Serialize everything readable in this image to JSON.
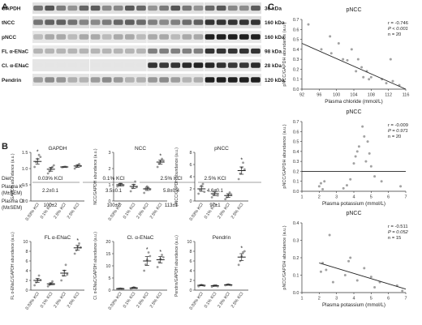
{
  "panel_letters": {
    "a": "A",
    "b": "B",
    "c": "C"
  },
  "blots": [
    {
      "label": "GAPDH",
      "size": "36 kDa",
      "profile": "gapdh",
      "bg": "#e1e1e1"
    },
    {
      "label": "tNCC",
      "size": "160 kDa",
      "profile": "tncc",
      "bg": "#dcdcdc"
    },
    {
      "label": "pNCC",
      "size": "160 kDa",
      "profile": "pncc",
      "bg": "#e7e7e7"
    },
    {
      "label": "FL α-ENaC",
      "size": "98 kDa",
      "profile": "flenac",
      "bg": "#ebebeb"
    },
    {
      "label": "Cl. α-ENaC",
      "size": "28 kDa",
      "profile": "clenac",
      "bg": "#e6e6e6"
    },
    {
      "label": "Pendrin",
      "size": "120 kDa",
      "profile": "pendrin",
      "bg": "#e5e5e5"
    }
  ],
  "diet": {
    "label": "Diet",
    "groups": [
      "0.03% KCl",
      "0.1% KCl",
      "2.5% KCl",
      "2.5% KCl"
    ],
    "plasma_k_label1": "Plasma K⁺",
    "plasma_k_label2": "(M±SEM)",
    "plasma_k": [
      "2.2±0.1",
      "3.5±0.1",
      "5.8±0.4",
      "4.6±0.1"
    ],
    "plasma_cl_label1": "Plasma Cl⁻",
    "plasma_cl_label2": "(M±SEM)",
    "plasma_cl": [
      "100±2",
      "100±2",
      "113±1",
      "97±1"
    ]
  },
  "chart_data": [
    {
      "type": "scatter",
      "title": "GAPDH",
      "ylabel": "GAPDH abundance (a.u.)",
      "categories": [
        "0.03% KCl",
        "0.1% KCl",
        "2.5% KCl",
        "2.5% KCl"
      ],
      "ylim": [
        0,
        1.5
      ],
      "yticks": [
        "0.0",
        "0.5",
        "1.0",
        "1.5"
      ],
      "means": [
        1.22,
        0.98,
        1.05,
        1.08
      ],
      "sem": [
        0.08,
        0.06,
        0.01,
        0.04
      ],
      "points": [
        [
          1.05,
          1.2,
          1.3,
          1.42,
          1.36
        ],
        [
          0.85,
          0.92,
          1.0,
          1.05,
          1.1
        ],
        [
          1.04,
          1.05,
          1.06,
          1.05
        ],
        [
          1.0,
          1.05,
          1.1,
          1.14,
          1.08
        ]
      ],
      "significance": [
        "*",
        "",
        "",
        ""
      ]
    },
    {
      "type": "scatter",
      "title": "NCC",
      "ylabel": "NCC/GAPDH abundance (a.u.)",
      "categories": [
        "0.03% KCl",
        "0.1% KCl",
        "2.5% KCl",
        "2.5% KCl"
      ],
      "ylim": [
        0,
        3
      ],
      "yticks": [
        "0",
        "1",
        "2",
        "3"
      ],
      "means": [
        1.0,
        0.9,
        0.75,
        2.4
      ],
      "sem": [
        0.08,
        0.12,
        0.1,
        0.12
      ],
      "points": [
        [
          0.9,
          1.0,
          1.1,
          1.05,
          0.95
        ],
        [
          0.6,
          0.8,
          1.0,
          1.2,
          0.85
        ],
        [
          0.5,
          0.75,
          0.9,
          0.8,
          0.7
        ],
        [
          2.1,
          2.3,
          2.45,
          2.6,
          2.5
        ]
      ],
      "significance": [
        "",
        "",
        "",
        "*"
      ]
    },
    {
      "type": "scatter",
      "title": "pNCC",
      "ylabel": "pNCC/GAPDH abundance (a.u.)",
      "categories": [
        "0.03% KCl",
        "0.1% KCl",
        "2.5% KCl",
        "2.5% KCl"
      ],
      "ylim": [
        0,
        8
      ],
      "yticks": [
        "0",
        "2",
        "4",
        "6",
        "8"
      ],
      "means": [
        2.0,
        1.2,
        0.9,
        5.0
      ],
      "sem": [
        0.4,
        0.3,
        0.3,
        0.6
      ],
      "points": [
        [
          1.2,
          1.8,
          2.5,
          2.8,
          1.5
        ],
        [
          0.6,
          1.0,
          1.5,
          1.8,
          0.9
        ],
        [
          0.3,
          0.6,
          1.0,
          1.4,
          1.1
        ],
        [
          3.6,
          4.5,
          5.5,
          6.3,
          5.2
        ]
      ],
      "significance": [
        "",
        "",
        "",
        "*"
      ]
    },
    {
      "type": "scatter",
      "title": "FL α-ENaC",
      "ylabel": "FL α-ENaC/GAPDH abundance (a.u.)",
      "categories": [
        "0.03% KCl",
        "0.1% KCl",
        "2.5% KCl",
        "2.5% KCl"
      ],
      "ylim": [
        0,
        10
      ],
      "yticks": [
        "0",
        "2",
        "4",
        "6",
        "8",
        "10"
      ],
      "means": [
        2.0,
        1.3,
        3.5,
        8.7
      ],
      "sem": [
        0.4,
        0.2,
        0.6,
        0.5
      ],
      "points": [
        [
          1.0,
          1.6,
          2.2,
          3.0,
          2.1
        ],
        [
          0.8,
          1.1,
          1.4,
          1.8,
          1.2
        ],
        [
          2.0,
          3.0,
          4.0,
          5.2,
          3.2
        ],
        [
          7.5,
          8.2,
          9.0,
          9.6,
          8.8
        ]
      ],
      "significance": [
        "",
        "",
        "",
        "*"
      ]
    },
    {
      "type": "scatter",
      "title": "Cl. α-ENaC",
      "ylabel": "Cl. α-ENaC/GAPDH abundance (a.u.)",
      "categories": [
        "0.03% KCl",
        "0.1% KCl",
        "2.5% KCl",
        "2.5% KCl"
      ],
      "ylim": [
        0,
        20
      ],
      "yticks": [
        "0",
        "5",
        "10",
        "15",
        "20"
      ],
      "means": [
        0.6,
        0.9,
        12.0,
        12.5
      ],
      "sem": [
        0.1,
        0.2,
        1.8,
        1.3
      ],
      "points": [
        [
          0.5,
          0.6,
          0.7,
          0.6,
          0.5
        ],
        [
          0.6,
          0.9,
          1.2,
          1.0,
          0.8
        ],
        [
          8.0,
          10.5,
          12.5,
          15.5,
          14.0
        ],
        [
          9.5,
          11.5,
          13.0,
          14.5,
          13.5
        ]
      ],
      "significance": [
        "",
        "",
        "*",
        "*"
      ]
    },
    {
      "type": "scatter",
      "title": "Pendrin",
      "ylabel": "Pendrin/GAPDH abundance (a.u.)",
      "categories": [
        "0.03% KCl",
        "0.1% KCl",
        "2.5% KCl",
        "2.5% KCl"
      ],
      "ylim": [
        0,
        10
      ],
      "yticks": [
        "0",
        "2",
        "4",
        "6",
        "8",
        "10"
      ],
      "means": [
        1.0,
        0.9,
        1.1,
        6.8
      ],
      "sem": [
        0.08,
        0.1,
        0.08,
        0.7
      ],
      "points": [
        [
          0.8,
          1.0,
          1.1,
          1.0,
          0.9
        ],
        [
          0.7,
          0.9,
          1.0,
          1.0,
          0.8
        ],
        [
          1.0,
          1.1,
          1.2,
          1.1,
          1.0
        ],
        [
          5.2,
          6.0,
          7.0,
          7.8,
          8.0
        ]
      ],
      "significance": [
        "",
        "",
        "",
        "*"
      ]
    },
    {
      "type": "scatter",
      "title": "pNCC",
      "xlabel": "Plasma chloride (mmol/L)",
      "ylabel": "pNCC/GAPDH abundance (a.u.)",
      "xlim": [
        92,
        116
      ],
      "ylim": [
        0,
        0.7
      ],
      "xticks": [
        "92",
        "96",
        "100",
        "104",
        "108",
        "112",
        "116"
      ],
      "yticks": [
        "0.0",
        "0.1",
        "0.2",
        "0.3",
        "0.4",
        "0.5",
        "0.6",
        "0.7"
      ],
      "x": [
        93.5,
        96.5,
        98.5,
        98.8,
        100.5,
        101.5,
        102.5,
        103.5,
        104.5,
        105.0,
        105.8,
        106.2,
        107.0,
        107.5,
        108.0,
        110.5,
        111.5,
        112.5,
        113.0,
        114.5
      ],
      "y": [
        0.65,
        0.4,
        0.53,
        0.36,
        0.46,
        0.3,
        0.29,
        0.4,
        0.18,
        0.3,
        0.22,
        0.12,
        0.18,
        0.1,
        0.12,
        0.1,
        0.06,
        0.3,
        0.08,
        0.04
      ],
      "fit": [
        [
          92,
          0.46
        ],
        [
          116,
          0.0
        ]
      ],
      "stats": [
        "r = -0.746",
        "P < 0.001",
        "n = 20"
      ]
    },
    {
      "type": "scatter",
      "title": "pNCC",
      "xlabel": "Plasma potassium (mmol/L)",
      "ylabel": "pNCC/GAPDH abundance (a.u.)",
      "xlim": [
        1,
        7
      ],
      "ylim": [
        0,
        0.7
      ],
      "xticks": [
        "1",
        "2",
        "3",
        "4",
        "5",
        "6",
        "7"
      ],
      "yticks": [
        "0.0",
        "0.1",
        "0.2",
        "0.3",
        "0.4",
        "0.5",
        "0.6",
        "0.7"
      ],
      "x": [
        2.0,
        2.1,
        2.2,
        2.3,
        3.4,
        3.6,
        3.8,
        4.0,
        4.1,
        4.2,
        4.3,
        4.5,
        4.6,
        4.7,
        4.8,
        4.9,
        5.0,
        5.2,
        5.6,
        6.7
      ],
      "y": [
        0.05,
        0.08,
        0.02,
        0.1,
        0.03,
        0.06,
        0.12,
        0.28,
        0.35,
        0.4,
        0.45,
        0.65,
        0.55,
        0.3,
        0.5,
        0.38,
        0.25,
        0.15,
        0.1,
        0.05
      ],
      "fit": [
        [
          1,
          0.2
        ],
        [
          7,
          0.2
        ]
      ],
      "stats": [
        "r = -0.009",
        "P = 0.971",
        "n = 20"
      ]
    },
    {
      "type": "scatter",
      "title": "pNCC",
      "xlabel": "Plasma potassium (mmol/L)",
      "ylabel": "pNCC/GAPDH abundance (a.u.)",
      "xlim": [
        1,
        7
      ],
      "ylim": [
        0,
        0.4
      ],
      "xticks": [
        "1",
        "2",
        "3",
        "4",
        "5",
        "6",
        "7"
      ],
      "yticks": [
        "0.0",
        "0.1",
        "0.2",
        "0.3",
        "0.4"
      ],
      "x": [
        2.1,
        2.2,
        2.4,
        2.6,
        2.8,
        3.5,
        3.7,
        3.8,
        4.2,
        4.6,
        5.0,
        5.2,
        5.5,
        6.5,
        6.8
      ],
      "y": [
        0.12,
        0.17,
        0.13,
        0.33,
        0.06,
        0.1,
        0.18,
        0.2,
        0.07,
        0.14,
        0.09,
        0.03,
        0.06,
        0.04,
        0.01
      ],
      "fit": [
        [
          2,
          0.17
        ],
        [
          7,
          0.02
        ]
      ],
      "stats": [
        "r = -0.511",
        "P = 0.052",
        "n = 15"
      ]
    }
  ]
}
